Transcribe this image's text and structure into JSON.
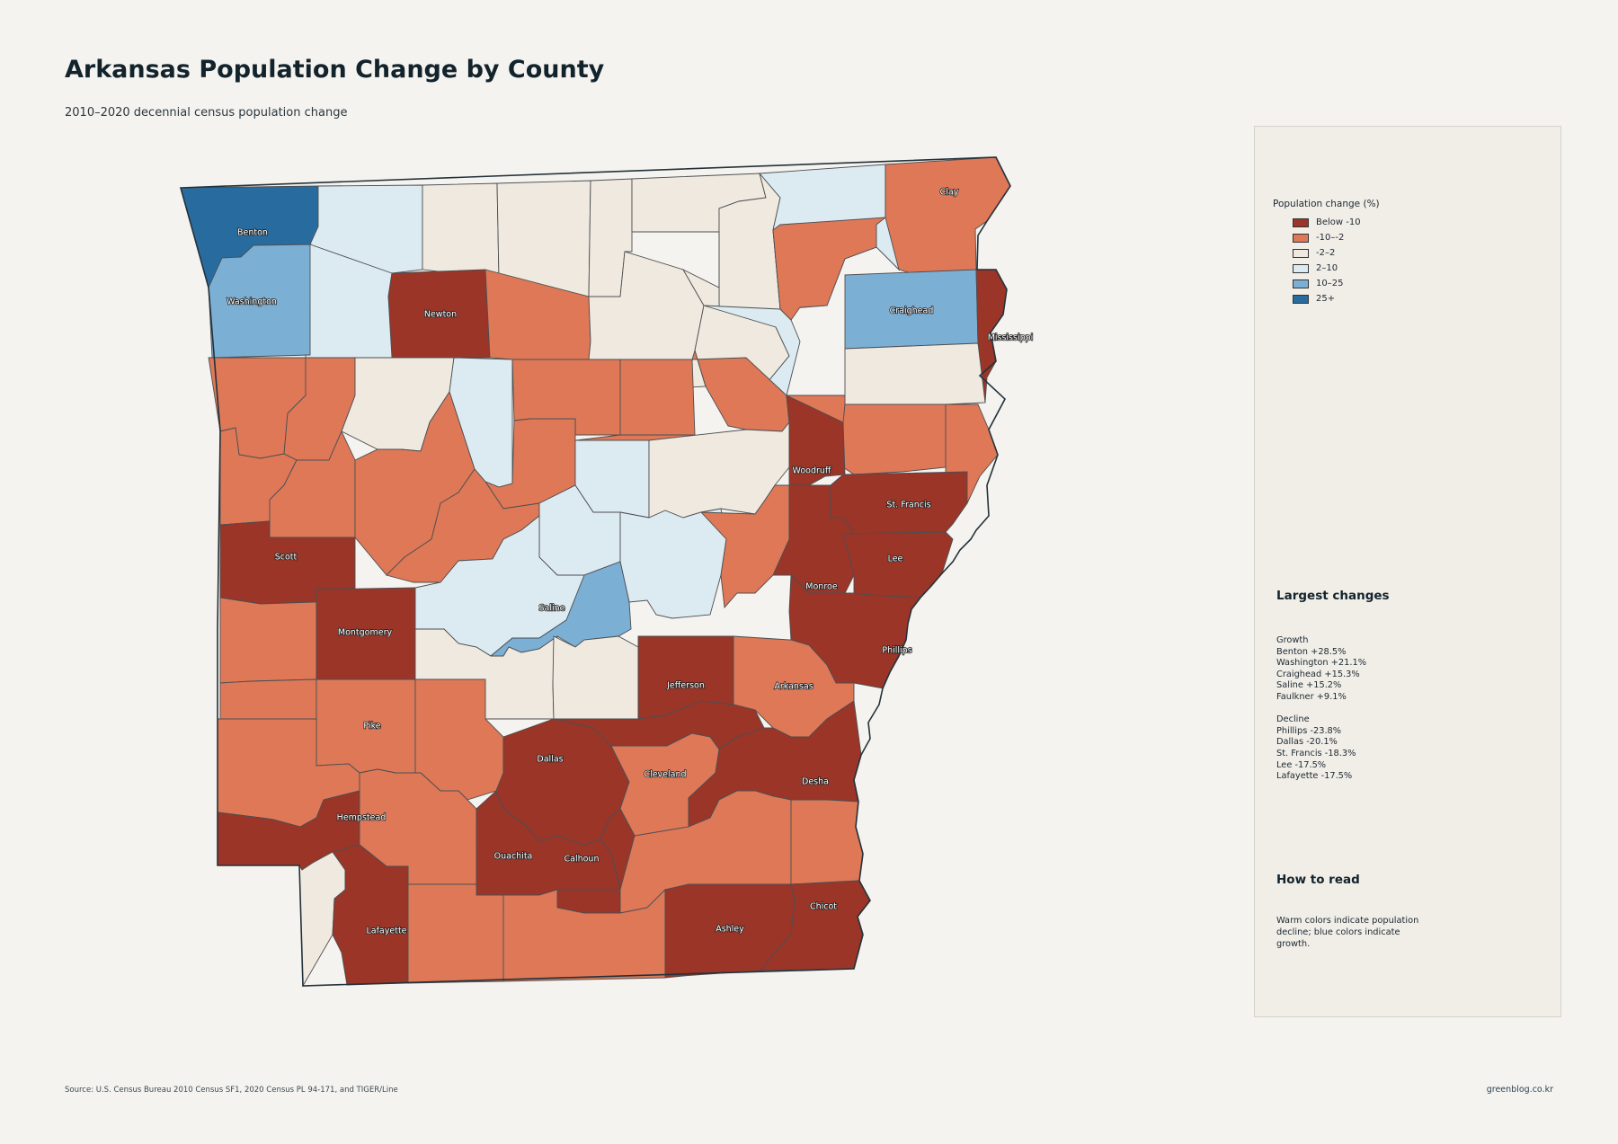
{
  "header": {
    "title": "Arkansas Population Change by County",
    "subtitle": "2010–2020 decennial census population change"
  },
  "legend": {
    "title": "Population change (%)",
    "items": [
      {
        "label": "Below -10",
        "color": "#9a3528"
      },
      {
        "label": "-10–-2",
        "color": "#de7857"
      },
      {
        "label": "-2–2",
        "color": "#efe9df"
      },
      {
        "label": "2–10",
        "color": "#dceaf1"
      },
      {
        "label": "10–25",
        "color": "#7cafd4"
      },
      {
        "label": "25+",
        "color": "#286c9f"
      }
    ]
  },
  "largest_changes": {
    "heading": "Largest changes",
    "growth_label": "Growth",
    "growth": [
      "Benton  +28.5%",
      "Washington  +21.1%",
      "Craighead  +15.3%",
      "Saline  +15.2%",
      "Faulkner  +9.1%"
    ],
    "decline_label": "Decline",
    "decline": [
      "Phillips  -23.8%",
      "Dallas  -20.1%",
      "St. Francis  -18.3%",
      "Lee  -17.5%",
      "Lafayette  -17.5%"
    ]
  },
  "how_to_read": {
    "heading": "How to read",
    "text": "Warm colors indicate population decline; blue colors indicate growth."
  },
  "footer": {
    "source": "Source: U.S. Census Bureau 2010 Census SF1, 2020 Census PL 94-171, and TIGER/Line",
    "credit": "greenblog.co.kr"
  },
  "map": {
    "counties": [
      {
        "label": "Benton",
        "cls": 5
      },
      {
        "label": "",
        "cls": 3
      },
      {
        "label": "",
        "cls": 2
      },
      {
        "label": "",
        "cls": 2
      },
      {
        "label": "",
        "cls": 2
      },
      {
        "label": "",
        "cls": 2
      },
      {
        "label": "",
        "cls": 2
      },
      {
        "label": "",
        "cls": 3
      },
      {
        "label": "Clay",
        "cls": 1
      },
      {
        "label": "Washington",
        "cls": 4
      },
      {
        "label": "",
        "cls": 3
      },
      {
        "label": "Newton",
        "cls": 0
      },
      {
        "label": "",
        "cls": 1
      },
      {
        "label": "",
        "cls": 2
      },
      {
        "label": "",
        "cls": 2
      },
      {
        "label": "",
        "cls": 3
      },
      {
        "label": "",
        "cls": 1
      },
      {
        "label": "",
        "cls": 3
      },
      {
        "label": "Craighead",
        "cls": 4
      },
      {
        "label": "Mississippi",
        "cls": 0
      },
      {
        "label": "",
        "cls": 1
      },
      {
        "label": "",
        "cls": 1
      },
      {
        "label": "",
        "cls": 2
      },
      {
        "label": "",
        "cls": 3
      },
      {
        "label": "",
        "cls": 1
      },
      {
        "label": "",
        "cls": 1
      },
      {
        "label": "",
        "cls": 1
      },
      {
        "label": "",
        "cls": 1
      },
      {
        "label": "",
        "cls": 2
      },
      {
        "label": "",
        "cls": 1
      },
      {
        "label": "",
        "cls": 1
      },
      {
        "label": "",
        "cls": 1
      },
      {
        "label": "",
        "cls": 1
      },
      {
        "label": "",
        "cls": 1
      },
      {
        "label": "",
        "cls": 3
      },
      {
        "label": "",
        "cls": 2
      },
      {
        "label": "Woodruff",
        "cls": 0
      },
      {
        "label": "",
        "cls": 1
      },
      {
        "label": "St. Francis",
        "cls": 0
      },
      {
        "label": "",
        "cls": 1
      },
      {
        "label": "",
        "cls": 1
      },
      {
        "label": "Scott",
        "cls": 0
      },
      {
        "label": "",
        "cls": 1
      },
      {
        "label": "",
        "cls": 3
      },
      {
        "label": "",
        "cls": 3
      },
      {
        "label": "",
        "cls": 1
      },
      {
        "label": "Monroe",
        "cls": 0
      },
      {
        "label": "Lee",
        "cls": 0
      },
      {
        "label": "",
        "cls": 1
      },
      {
        "label": "Montgomery",
        "cls": 0
      },
      {
        "label": "",
        "cls": 3
      },
      {
        "label": "Saline",
        "cls": 4
      },
      {
        "label": "Phillips",
        "cls": 0
      },
      {
        "label": "",
        "cls": 2
      },
      {
        "label": "",
        "cls": 2
      },
      {
        "label": "Jefferson",
        "cls": 0
      },
      {
        "label": "Arkansas",
        "cls": 1
      },
      {
        "label": "",
        "cls": 1
      },
      {
        "label": "Pike",
        "cls": 1
      },
      {
        "label": "",
        "cls": 1
      },
      {
        "label": "Dallas",
        "cls": 0
      },
      {
        "label": "Cleveland",
        "cls": 0
      },
      {
        "label": "",
        "cls": 1
      },
      {
        "label": "Desha",
        "cls": 0
      },
      {
        "label": "",
        "cls": 1
      },
      {
        "label": "Hempstead",
        "cls": 0
      },
      {
        "label": "",
        "cls": 1
      },
      {
        "label": "Ouachita",
        "cls": 0
      },
      {
        "label": "Calhoun",
        "cls": 0
      },
      {
        "label": "",
        "cls": 1
      },
      {
        "label": "",
        "cls": 1
      },
      {
        "label": "",
        "cls": 2
      },
      {
        "label": "Lafayette",
        "cls": 0
      },
      {
        "label": "",
        "cls": 1
      },
      {
        "label": "",
        "cls": 1
      },
      {
        "label": "Ashley",
        "cls": 0
      },
      {
        "label": "Chicot",
        "cls": 0
      }
    ]
  }
}
